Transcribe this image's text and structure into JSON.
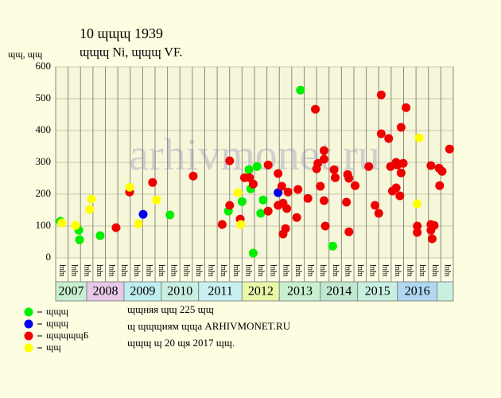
{
  "chart_data": {
    "type": "scatter",
    "title": "10 ɰɰɰ 1939",
    "subtitle": "ɰɰɰ Ni, ɰɰɰ VF.",
    "y_label": "ɰɰ, ɰɰ",
    "watermark": "arhivmonet.ru",
    "ylim": [
      0,
      600
    ],
    "yticks": [
      0,
      100,
      200,
      300,
      400,
      500,
      600
    ],
    "grid": true,
    "xlim": [
      0,
      32
    ],
    "categories": [
      "ɰɰ",
      "ɰɰ",
      "ɰɰ",
      "ɰɰ",
      "ɰɰ",
      "ɰɰ",
      "ɰɰ",
      "ɰɰ",
      "ɰɰ",
      "ɰɰ",
      "ɰɰ",
      "ɰɰ",
      "ɰɰ",
      "ɰɰ",
      "ɰɰ",
      "ɰɰ",
      "ɰɰ",
      "ɰɰ",
      "ɰɰ",
      "ɰɰ",
      "ɰɰ",
      "ɰɰ",
      "ɰɰ",
      "ɰɰ",
      "ɰɰ",
      "ɰɰ",
      "ɰɰ",
      "ɰɰ",
      "ɰɰ",
      "ɰɰ",
      "ɰɰ",
      "ɰɰ"
    ],
    "years": [
      "2007",
      "2008",
      "2009",
      "2010",
      "2011",
      "2012",
      "2013",
      "2014",
      "2015",
      "2016"
    ],
    "series": [
      {
        "name": "ɰɰɰ",
        "color": "#00ee00",
        "x": [
          0.38,
          1.86,
          1.92,
          3.58,
          9.2,
          13.9,
          15.0,
          15.55,
          15.7,
          15.9,
          16.2,
          16.5,
          16.7,
          19.7,
          22.3
        ],
        "values": [
          115,
          87,
          57,
          70,
          135,
          147,
          177,
          277,
          217,
          15,
          287,
          140,
          182,
          527,
          37
        ]
      },
      {
        "name": "ɰɰɰ",
        "color": "#0000ee",
        "x": [
          7.04,
          17.9
        ],
        "values": [
          137,
          205
        ]
      },
      {
        "name": "ɰɰɰɰɰБ",
        "color": "#ee0000",
        "x": [
          4.86,
          5.95,
          7.8,
          11.07,
          13.4,
          14.0,
          14.0,
          14.85,
          15.2,
          15.6,
          15.9,
          17.1,
          17.1,
          17.9,
          17.9,
          18.2,
          18.3,
          18.3,
          18.5,
          18.6,
          18.7,
          19.4,
          19.5,
          20.3,
          20.9,
          21.0,
          21.1,
          21.3,
          21.6,
          21.6,
          21.6,
          21.7,
          22.4,
          22.5,
          23.4,
          23.5,
          23.6,
          23.6,
          24.1,
          25.2,
          25.7,
          26.0,
          26.2,
          26.2,
          26.8,
          26.95,
          27.1,
          27.4,
          27.4,
          27.5,
          27.7,
          27.8,
          27.8,
          27.97,
          28.2,
          29.1,
          29.1,
          30.2,
          30.2,
          30.2,
          30.3,
          30.46,
          30.85,
          30.9,
          31.1,
          31.7
        ],
        "values": [
          95,
          207,
          237,
          257,
          105,
          305,
          165,
          122,
          252,
          252,
          232,
          292,
          147,
          265,
          165,
          225,
          75,
          172,
          92,
          155,
          207,
          127,
          215,
          187,
          467,
          280,
          297,
          225,
          337,
          310,
          180,
          100,
          277,
          252,
          175,
          262,
          250,
          82,
          227,
          287,
          165,
          140,
          390,
          512,
          375,
          287,
          210,
          220,
          300,
          292,
          195,
          410,
          267,
          297,
          472,
          100,
          80,
          290,
          105,
          87,
          60,
          102,
          282,
          227,
          272,
          342
        ]
      },
      {
        "name": "ɰɰ",
        "color": "#ffff00",
        "x": [
          0.5,
          1.6,
          2.75,
          2.88,
          5.95,
          6.66,
          8.1,
          14.66,
          14.9,
          29.25,
          29.1
        ],
        "values": [
          110,
          102,
          152,
          185,
          222,
          107,
          182,
          205,
          105,
          377,
          170
        ]
      }
    ],
    "notes": [
      "ɰɰняя ɰɰ 225 ɰɰ",
      "ɰ ɰɰɰиям ɰɰа ARHIVMONET.RU",
      "ɰɰɰ ɰ 20 ɰя 2017 ɰɰ."
    ]
  }
}
